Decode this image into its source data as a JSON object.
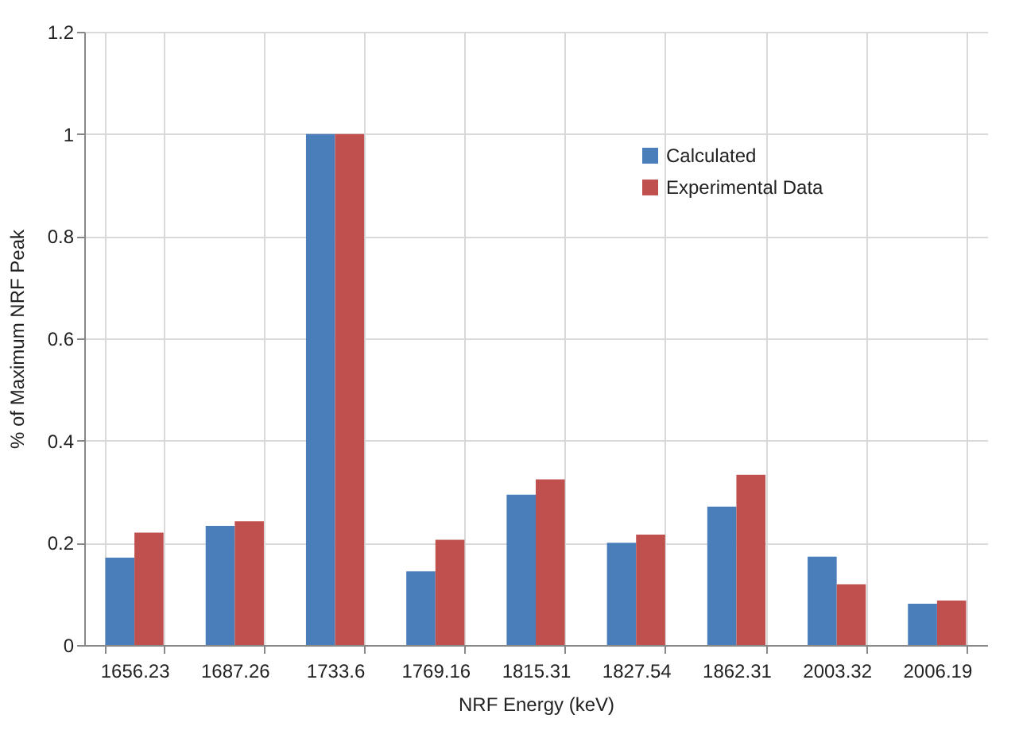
{
  "chart_data": {
    "type": "bar",
    "xlabel": "NRF Energy (keV)",
    "ylabel": "% of Maximum NRF Peak",
    "categories": [
      "1656.23",
      "1687.26",
      "1733.6",
      "1769.16",
      "1815.31",
      "1827.54",
      "1862.31",
      "2003.32",
      "2006.19"
    ],
    "series": [
      {
        "name": "Calculated",
        "color": "#4a7ebb",
        "values": [
          0.171,
          0.233,
          1,
          0.144,
          0.294,
          0.2,
          0.271,
          0.173,
          0.081
        ]
      },
      {
        "name": "Experimental Data",
        "color": "#c0504d",
        "values": [
          0.22,
          0.242,
          1,
          0.206,
          0.324,
          0.216,
          0.333,
          0.119,
          0.087
        ]
      }
    ],
    "ylim": [
      0,
      1.2
    ],
    "yticks": [
      0,
      0.2,
      0.4,
      0.6,
      0.8,
      1,
      1.2
    ],
    "grid": true,
    "legend": "top right"
  }
}
